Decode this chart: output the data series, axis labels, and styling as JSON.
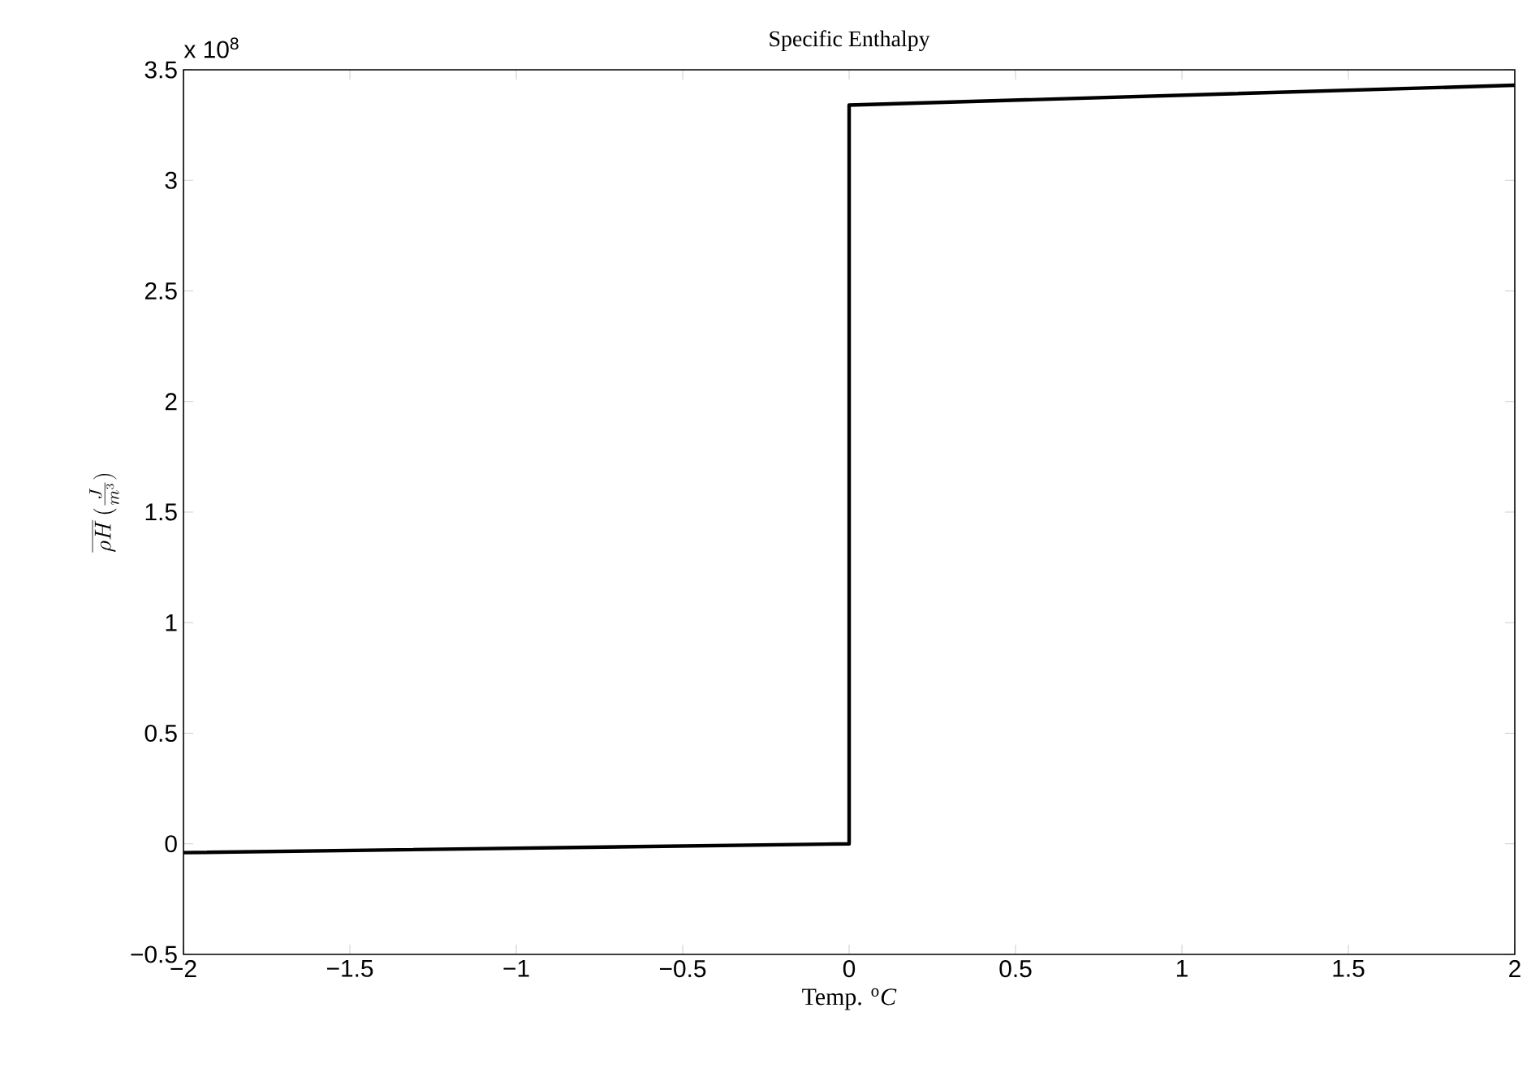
{
  "chart_data": {
    "type": "line",
    "title": "Specific Enthalpy",
    "xlabel": "Temp. $^{o}$*C*",
    "ylabel": "\\overline{\\rho H}\\,(\\frac{J}{m^3})",
    "annotations": [
      "x 10$^{8}$"
    ],
    "x": [
      -2,
      0,
      0,
      2
    ],
    "series": [
      {
        "color": "#000000",
        "values": [
          -0.04,
          0.0,
          3.34,
          3.43
        ]
      }
    ],
    "xlim": [
      -2,
      2
    ],
    "ylim": [
      -0.5,
      3.5
    ],
    "xticks": [
      {
        "value": -2,
        "label": "−2"
      },
      {
        "value": -1.5,
        "label": "−1.5"
      },
      {
        "value": -1,
        "label": "−1"
      },
      {
        "value": -0.5,
        "label": "−0.5"
      },
      0,
      0.5,
      1,
      1.5,
      2
    ],
    "yticks": [
      {
        "value": -0.5,
        "label": "−0.5"
      },
      0,
      0.5,
      1,
      1.5,
      2,
      2.5,
      3,
      3.5
    ],
    "grid": false,
    "marker": "none",
    "line_style": "solid"
  }
}
